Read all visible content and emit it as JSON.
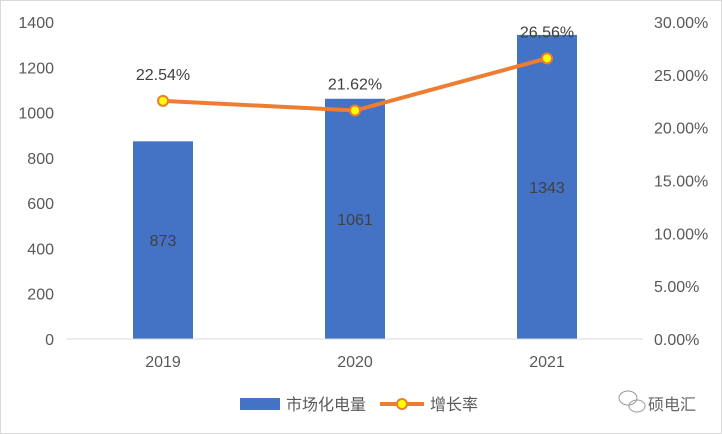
{
  "chart_data": {
    "type": "bar+line",
    "categories": [
      "2019",
      "2020",
      "2021"
    ],
    "series": [
      {
        "name": "市场化电量",
        "type": "bar",
        "axis": "left",
        "values": [
          873,
          1061,
          1343
        ],
        "labels": [
          "873",
          "1061",
          "1343"
        ],
        "color": "#4472C4"
      },
      {
        "name": "增长率",
        "type": "line",
        "axis": "right",
        "values": [
          22.54,
          21.62,
          26.56
        ],
        "labels": [
          "22.54%",
          "21.62%",
          "26.56%"
        ],
        "color": "#ED7D31",
        "marker_color": "#FFFF00"
      }
    ],
    "ylim_left": [
      0,
      1400
    ],
    "yticks_left": [
      "0",
      "200",
      "400",
      "600",
      "800",
      "1000",
      "1200",
      "1400"
    ],
    "ylim_right": [
      0,
      30
    ],
    "yticks_right": [
      "0.00%",
      "5.00%",
      "10.00%",
      "15.00%",
      "20.00%",
      "25.00%",
      "30.00%"
    ],
    "grid": false,
    "legend": "bottom"
  },
  "watermark": "硕电汇"
}
